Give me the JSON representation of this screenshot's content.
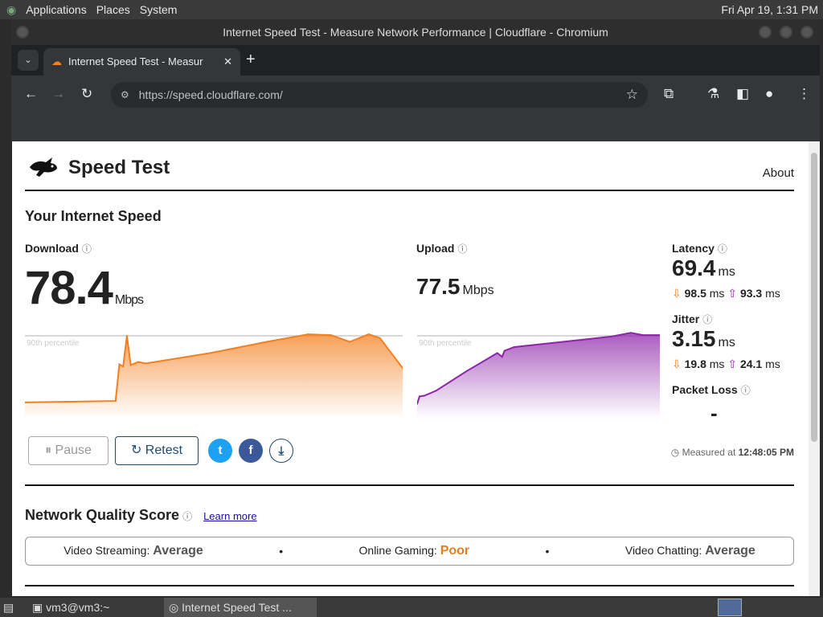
{
  "desktop": {
    "menus": [
      "Applications",
      "Places",
      "System"
    ],
    "clock": "Fri Apr 19,  1:31 PM"
  },
  "window": {
    "title": "Internet Speed Test - Measure Network Performance | Cloudflare - Chromium"
  },
  "browser": {
    "tab_title": "Internet Speed Test - Measur",
    "url": "https://speed.cloudflare.com/"
  },
  "page": {
    "brand": "Speed Test",
    "about": "About",
    "section_title": "Your Internet Speed",
    "download": {
      "label": "Download",
      "value": "78.4",
      "unit": "Mbps"
    },
    "upload": {
      "label": "Upload",
      "value": "77.5",
      "unit": "Mbps"
    },
    "latency": {
      "label": "Latency",
      "value": "69.4",
      "unit": "ms",
      "down": "98.5",
      "up": "93.3",
      "sub_unit": "ms"
    },
    "jitter": {
      "label": "Jitter",
      "value": "3.15",
      "unit": "ms",
      "down": "19.8",
      "up": "24.1",
      "sub_unit": "ms"
    },
    "packet_loss": {
      "label": "Packet Loss",
      "value": "-"
    },
    "percentile_label": "90th percentile",
    "pause": "Pause",
    "retest": "Retest",
    "measured_prefix": "Measured at",
    "measured_time": "12:48:05 PM",
    "nq_title": "Network Quality Score",
    "learn_more": "Learn more",
    "nq": [
      {
        "label": "Video Streaming:",
        "value": "Average"
      },
      {
        "label": "Online Gaming:",
        "value": "Poor"
      },
      {
        "label": "Video Chatting:",
        "value": "Average"
      }
    ]
  },
  "colors": {
    "download": "#f38020",
    "upload": "#8e24aa",
    "poor": "#e67e22"
  },
  "taskbar": {
    "items": [
      "vm3@vm3:~",
      "Internet Speed Test ..."
    ]
  },
  "chart_data": [
    {
      "type": "area",
      "name": "Download",
      "x": [
        0,
        24,
        25,
        26,
        27,
        28,
        30,
        32,
        49,
        64,
        75,
        81,
        86,
        91,
        94,
        100
      ],
      "y": [
        11.6,
        13.2,
        53.6,
        51.2,
        85,
        52.8,
        56.1,
        54.5,
        66,
        78.4,
        86.7,
        85.8,
        78.4,
        86.7,
        82.5,
        49.5
      ],
      "reference_line": "90th percentile"
    },
    {
      "type": "area",
      "name": "Upload",
      "x": [
        0,
        1,
        3,
        8,
        20,
        33,
        35,
        36,
        40,
        60,
        80,
        88,
        93,
        100
      ],
      "y": [
        9.9,
        18.2,
        19,
        24.8,
        45.4,
        66,
        61.9,
        68.5,
        72.6,
        78.4,
        84.2,
        88.3,
        85.8,
        85.8
      ],
      "reference_line": "90th percentile"
    }
  ]
}
